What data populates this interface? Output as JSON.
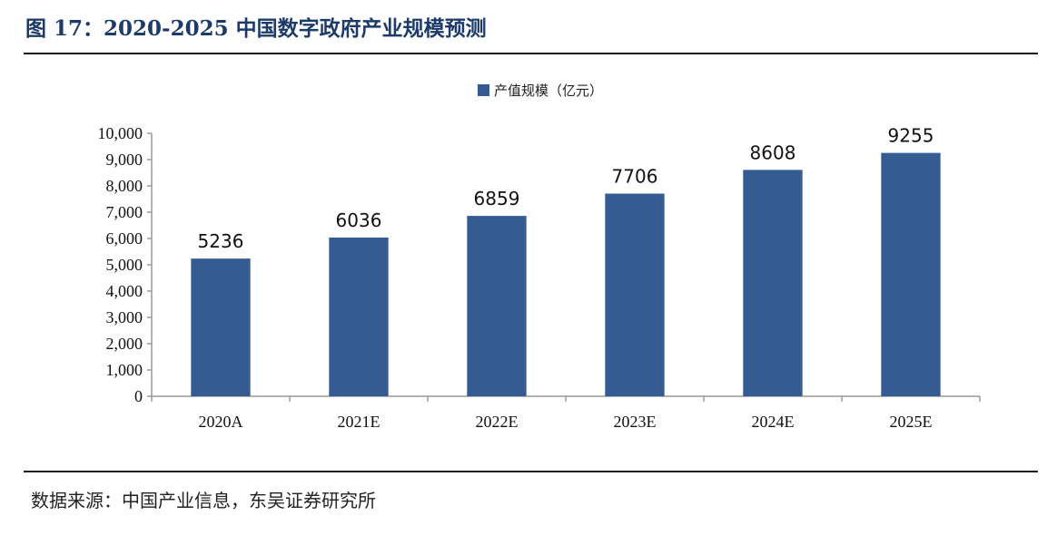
{
  "figure": {
    "title": "图 17：2020-2025 中国数字政府产业规模预测",
    "source": "数据来源：中国产业信息，东吴证券研究所"
  },
  "chart_data": {
    "type": "bar",
    "categories": [
      "2020A",
      "2021E",
      "2022E",
      "2023E",
      "2024E",
      "2025E"
    ],
    "series": [
      {
        "name": "产值规模（亿元）",
        "values": [
          5236,
          6036,
          6859,
          7706,
          8608,
          9255
        ]
      }
    ],
    "data_labels": [
      "5236",
      "6036",
      "6859",
      "7706",
      "8608",
      "9255"
    ],
    "y_ticks": [
      0,
      1000,
      2000,
      3000,
      4000,
      5000,
      6000,
      7000,
      8000,
      9000,
      10000
    ],
    "y_tick_labels": [
      "0",
      "1,000",
      "2,000",
      "3,000",
      "4,000",
      "5,000",
      "6,000",
      "7,000",
      "8,000",
      "9,000",
      "10,000"
    ],
    "ylim": [
      0,
      10000
    ],
    "grid": false,
    "legend_position": "top-center",
    "bar_color": "#345c92"
  }
}
